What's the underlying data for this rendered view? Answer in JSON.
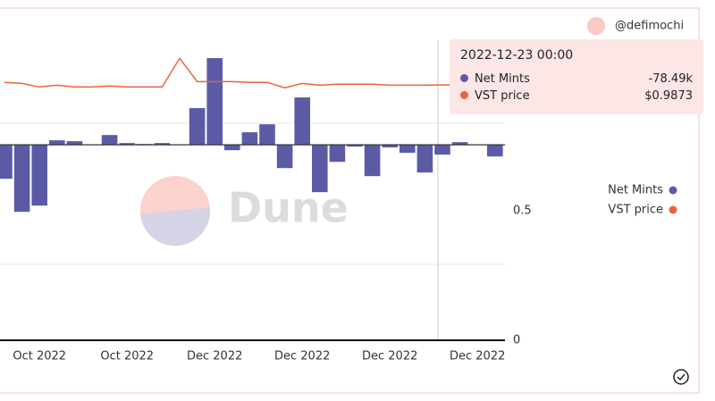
{
  "chart_data": {
    "type": "bar-line",
    "author": "@defimochi",
    "watermark": "Dune",
    "categories": [
      null,
      null,
      "Oct 2022",
      null,
      null,
      null,
      null,
      "Oct 2022",
      null,
      null,
      null,
      null,
      "Dec 2022",
      null,
      null,
      null,
      null,
      "Dec 2022",
      null,
      null,
      null,
      null,
      "Dec 2022",
      null,
      null,
      null,
      null,
      "Dec 2022",
      null
    ],
    "series": [
      {
        "name": "Net Mints",
        "type": "bar",
        "color": "#5b5ba5",
        "values": [
          -271000,
          -535000,
          -485000,
          36000,
          29000,
          0,
          78000,
          14000,
          7000,
          14000,
          0,
          293000,
          692000,
          -43000,
          100000,
          164000,
          -186000,
          378000,
          -378000,
          -136000,
          -14000,
          -250000,
          -21000,
          -64000,
          -221000,
          -78490,
          21000,
          0,
          -93000
        ]
      },
      {
        "name": "VST price",
        "type": "line",
        "axis": "y2",
        "color": "#e8643c",
        "values": [
          0.997,
          0.993,
          0.979,
          0.986,
          0.979,
          0.979,
          0.983,
          0.979,
          0.979,
          0.979,
          1.09,
          1.0,
          1.0,
          1.0,
          0.997,
          0.997,
          0.976,
          0.993,
          0.986,
          0.99,
          0.99,
          0.99,
          0.986,
          0.986,
          0.986,
          0.9873,
          0.986,
          0.986,
          0.986
        ]
      }
    ],
    "ylim": [
      -1560000,
      835000
    ],
    "y2lim": [
      0,
      1.16
    ],
    "y2ticks": [
      0,
      0.5
    ],
    "legend": "right",
    "tooltip": {
      "x": "2022-12-23 00:00",
      "labels": [
        "-78.49k",
        "$0.9873"
      ]
    }
  }
}
